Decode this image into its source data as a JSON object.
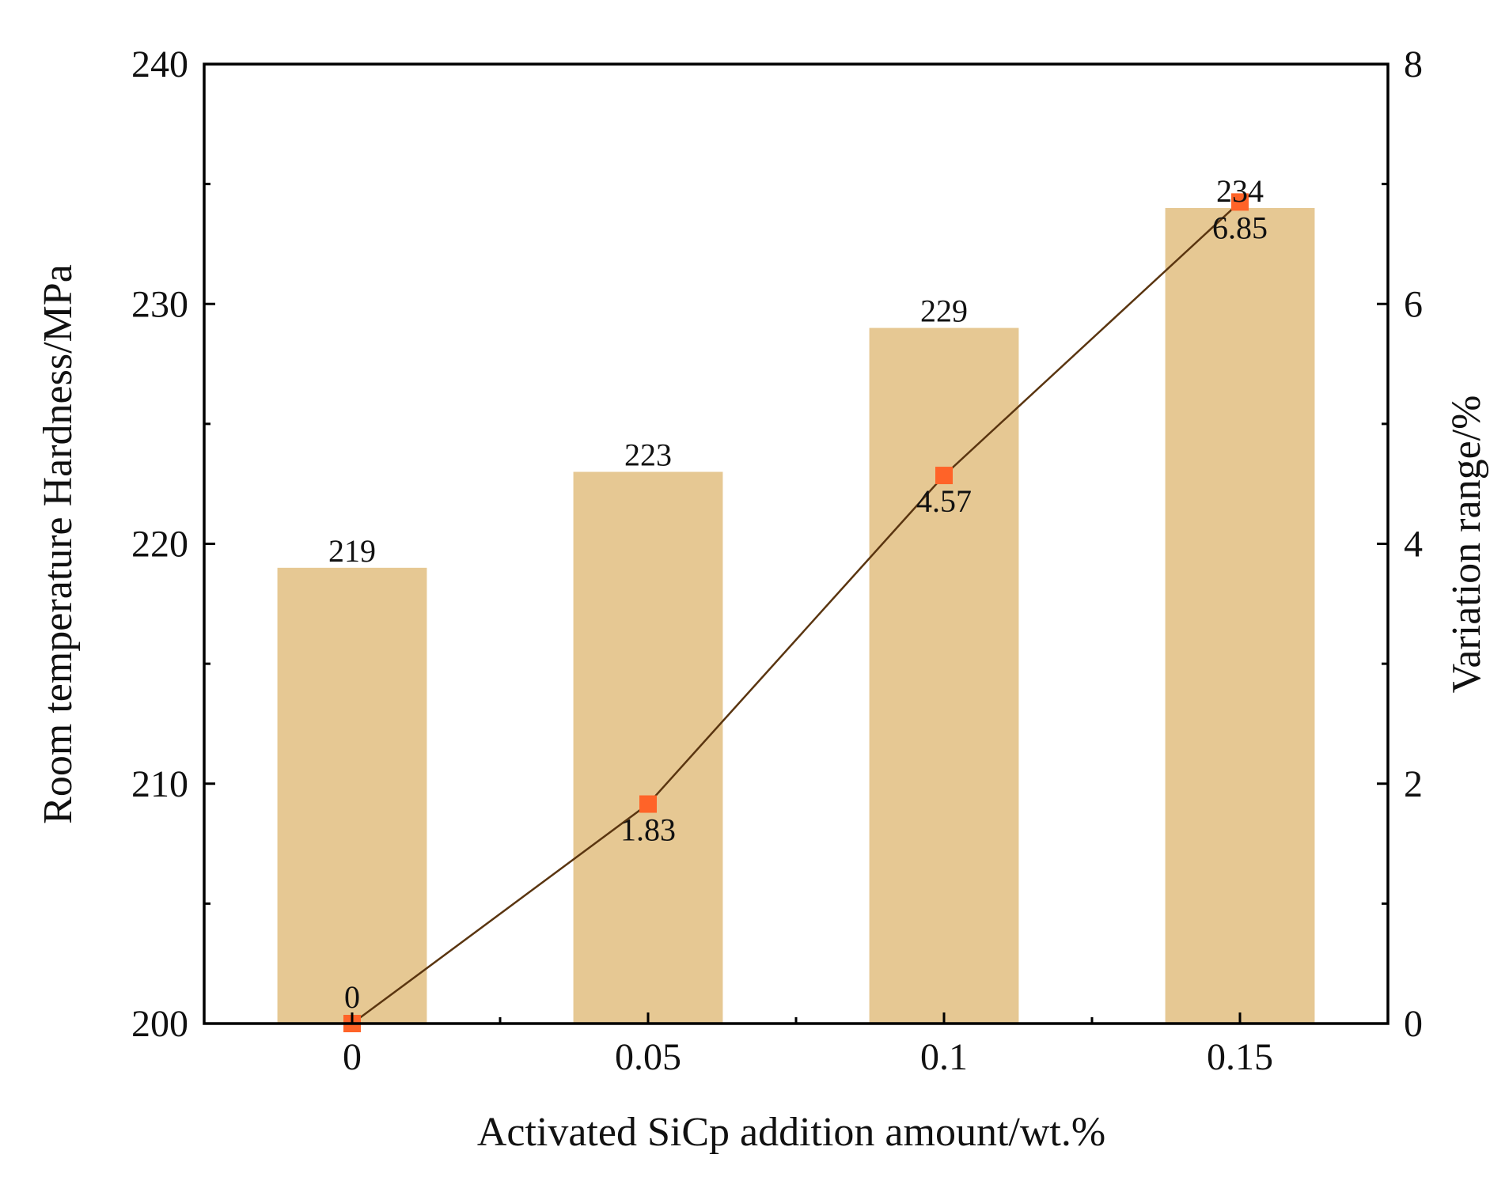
{
  "chart_data": {
    "type": "bar",
    "categories": [
      "0",
      "0.05",
      "0.1",
      "0.15"
    ],
    "series": [
      {
        "name": "Room temperature Hardness",
        "type": "bar",
        "axis": "left",
        "values": [
          219,
          223,
          229,
          234
        ],
        "labels": [
          "219",
          "223",
          "229",
          "234"
        ],
        "color": "#E6C893"
      },
      {
        "name": "Variation range",
        "type": "line",
        "axis": "right",
        "values": [
          0,
          1.83,
          4.57,
          6.85
        ],
        "labels": [
          "0",
          "1.83",
          "4.57",
          "6.85"
        ],
        "line_color": "#5A3510",
        "marker_color": "#FF6328",
        "marker": "square"
      }
    ],
    "xlabel": "Activated SiCp addition amount/wt.%",
    "ylabel": "Room temperature  Hardness/MPa",
    "y2label": "Variation range/%",
    "ylim": [
      200,
      240
    ],
    "y2lim": [
      0,
      8
    ],
    "yticks": [
      "200",
      "210",
      "220",
      "230",
      "240"
    ],
    "y2ticks": [
      "0",
      "2",
      "4",
      "6",
      "8"
    ],
    "grid": false,
    "legend": "none"
  }
}
